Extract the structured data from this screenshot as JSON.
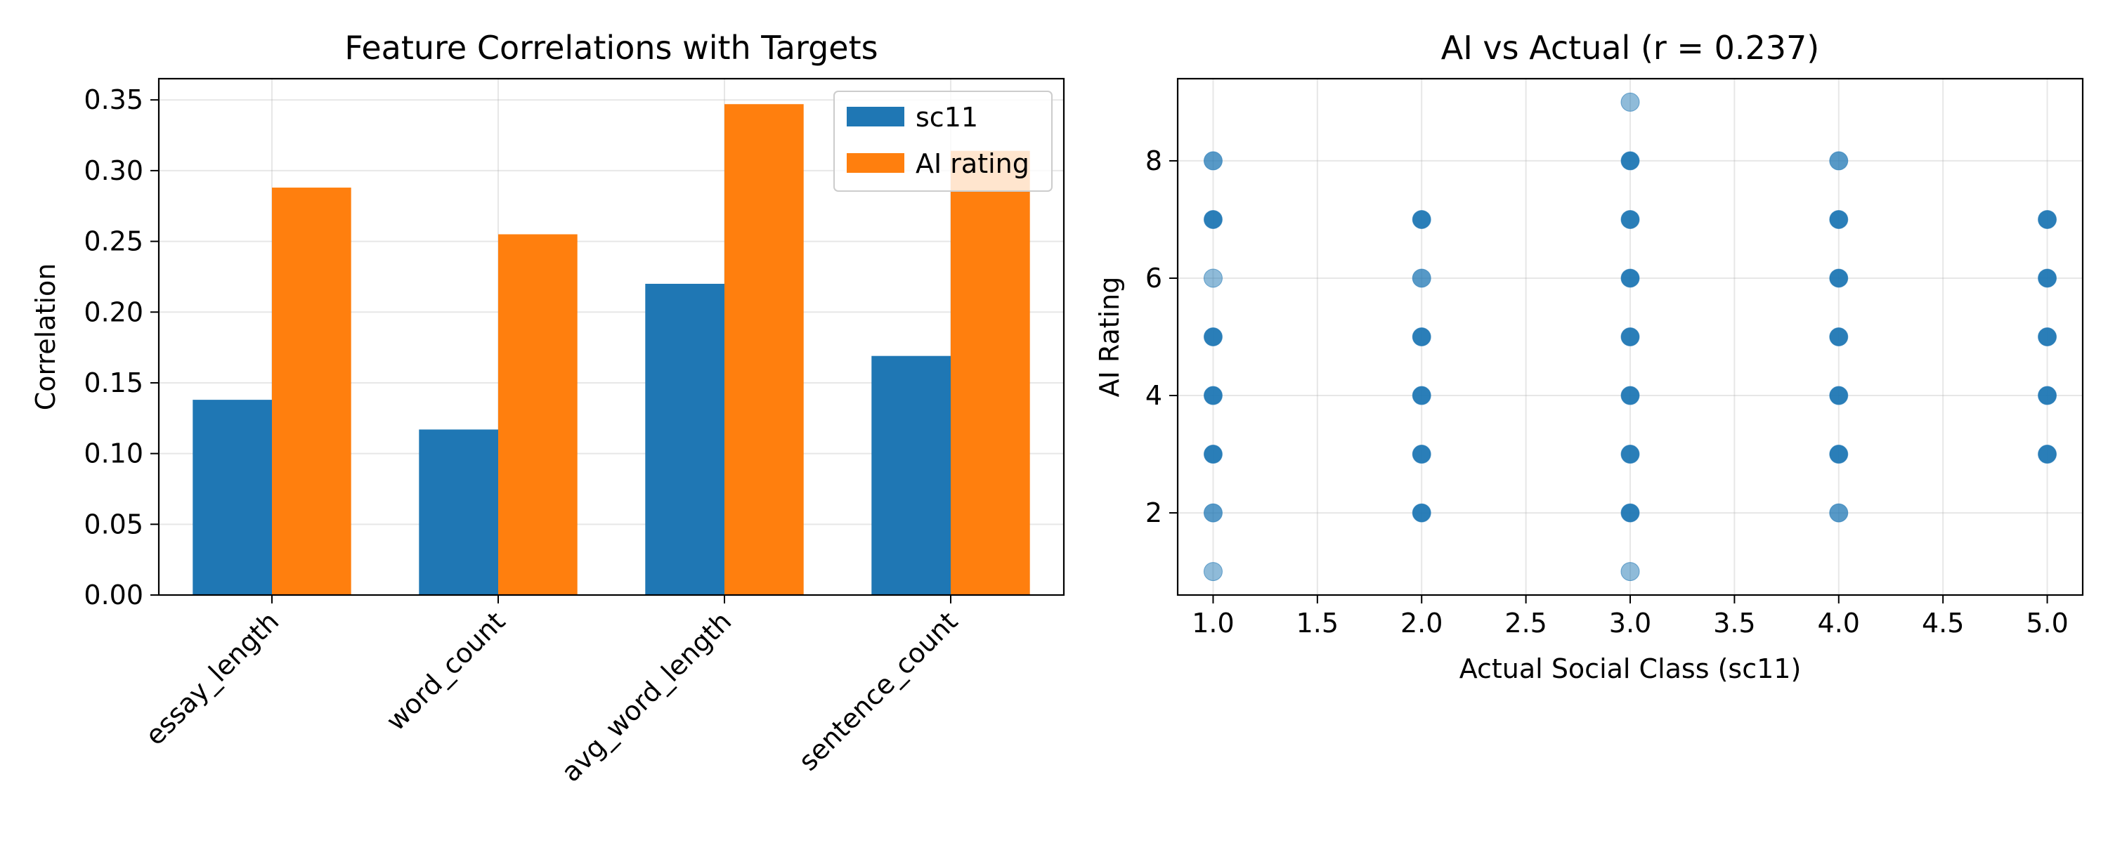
{
  "chart_data": [
    {
      "type": "bar",
      "title": "Feature Correlations with Targets",
      "xlabel": "",
      "ylabel": "Correlation",
      "categories": [
        "essay_length",
        "word_count",
        "avg_word_length",
        "sentence_count"
      ],
      "series": [
        {
          "name": "sc11",
          "color": "#1f77b4",
          "values": [
            0.138,
            0.117,
            0.22,
            0.169
          ]
        },
        {
          "name": "AI rating",
          "color": "#ff7f0e",
          "values": [
            0.288,
            0.255,
            0.347,
            0.314
          ]
        }
      ],
      "ylim": [
        0,
        0.365
      ],
      "yticks": [
        "0.00",
        "0.05",
        "0.10",
        "0.15",
        "0.20",
        "0.25",
        "0.30",
        "0.35"
      ],
      "grid": true,
      "legend": "top-right"
    },
    {
      "type": "scatter",
      "title": "AI vs Actual (r = 0.237)",
      "xlabel": "Actual Social Class (sc11)",
      "ylabel": "AI Rating",
      "xlim": [
        0.83,
        5.17
      ],
      "ylim": [
        0.6,
        9.4
      ],
      "xticks": [
        "1.0",
        "1.5",
        "2.0",
        "2.5",
        "3.0",
        "3.5",
        "4.0",
        "4.5",
        "5.0"
      ],
      "yticks": [
        "2",
        "4",
        "6",
        "8"
      ],
      "grid": true,
      "color": "#1f77b4",
      "points": [
        {
          "x": 1,
          "y": 1,
          "density": 1
        },
        {
          "x": 1,
          "y": 2,
          "density": 2
        },
        {
          "x": 1,
          "y": 3,
          "density": 3
        },
        {
          "x": 1,
          "y": 4,
          "density": 3
        },
        {
          "x": 1,
          "y": 5,
          "density": 3
        },
        {
          "x": 1,
          "y": 6,
          "density": 1
        },
        {
          "x": 1,
          "y": 7,
          "density": 3
        },
        {
          "x": 1,
          "y": 8,
          "density": 2
        },
        {
          "x": 2,
          "y": 2,
          "density": 3
        },
        {
          "x": 2,
          "y": 3,
          "density": 3
        },
        {
          "x": 2,
          "y": 4,
          "density": 3
        },
        {
          "x": 2,
          "y": 5,
          "density": 3
        },
        {
          "x": 2,
          "y": 6,
          "density": 2
        },
        {
          "x": 2,
          "y": 7,
          "density": 3
        },
        {
          "x": 3,
          "y": 1,
          "density": 1
        },
        {
          "x": 3,
          "y": 2,
          "density": 3
        },
        {
          "x": 3,
          "y": 3,
          "density": 3
        },
        {
          "x": 3,
          "y": 4,
          "density": 3
        },
        {
          "x": 3,
          "y": 5,
          "density": 3
        },
        {
          "x": 3,
          "y": 6,
          "density": 3
        },
        {
          "x": 3,
          "y": 7,
          "density": 3
        },
        {
          "x": 3,
          "y": 8,
          "density": 3
        },
        {
          "x": 3,
          "y": 9,
          "density": 1
        },
        {
          "x": 4,
          "y": 2,
          "density": 2
        },
        {
          "x": 4,
          "y": 3,
          "density": 3
        },
        {
          "x": 4,
          "y": 4,
          "density": 3
        },
        {
          "x": 4,
          "y": 5,
          "density": 3
        },
        {
          "x": 4,
          "y": 6,
          "density": 3
        },
        {
          "x": 4,
          "y": 7,
          "density": 3
        },
        {
          "x": 4,
          "y": 8,
          "density": 2
        },
        {
          "x": 5,
          "y": 3,
          "density": 3
        },
        {
          "x": 5,
          "y": 4,
          "density": 3
        },
        {
          "x": 5,
          "y": 5,
          "density": 3
        },
        {
          "x": 5,
          "y": 6,
          "density": 3
        },
        {
          "x": 5,
          "y": 7,
          "density": 3
        }
      ]
    }
  ]
}
